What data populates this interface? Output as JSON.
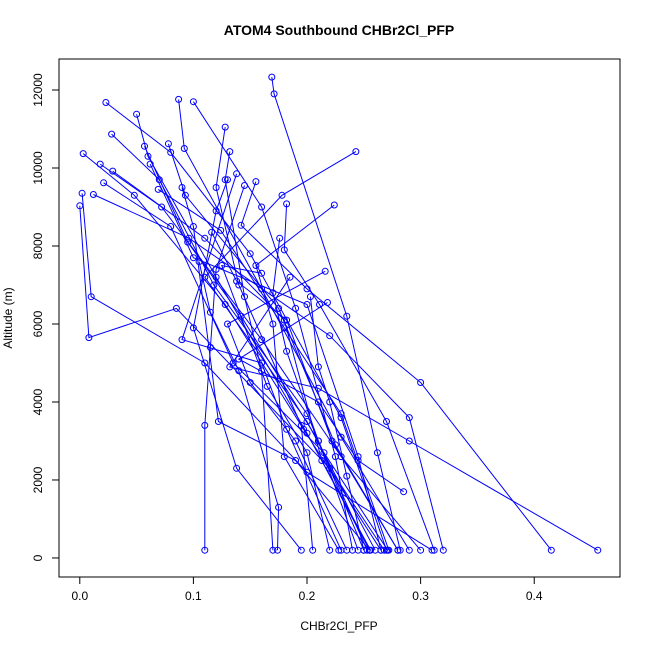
{
  "chart_data": {
    "type": "scatter",
    "title": "ATOM4 Southbound CHBr2Cl_PFP",
    "xlabel": "CHBr2Cl_PFP",
    "ylabel": "Altitude (m)",
    "xlim": [
      -0.0183,
      0.4755
    ],
    "ylim": [
      -488,
      12795
    ],
    "x_ticks": [
      "0.0",
      "0.1",
      "0.2",
      "0.3",
      "0.4"
    ],
    "x_tick_values": [
      0,
      0.1,
      0.2,
      0.3,
      0.4
    ],
    "y_ticks": [
      "0",
      "2000",
      "4000",
      "6000",
      "8000",
      "10000",
      "12000"
    ],
    "y_tick_values": [
      0,
      2000,
      4000,
      6000,
      8000,
      10000,
      12000
    ],
    "grid": false,
    "legend": "none",
    "color": "#0000ff",
    "series": [
      {
        "x": [
          0.169,
          0.171,
          0.235,
          0.262,
          0.282
        ],
        "y": [
          12330,
          11900,
          6200,
          2700,
          200
        ]
      },
      {
        "x": [
          0.023,
          0.08,
          0.15,
          0.23,
          0.27
        ],
        "y": [
          11680,
          10400,
          7800,
          3600,
          200
        ]
      },
      {
        "x": [
          0.05,
          0.06,
          0.12,
          0.2,
          0.255
        ],
        "y": [
          11380,
          10300,
          7200,
          3200,
          200
        ]
      },
      {
        "x": [
          0.087,
          0.092,
          0.16,
          0.23,
          0.29
        ],
        "y": [
          11760,
          10500,
          6900,
          3100,
          200
        ]
      },
      {
        "x": [
          0.1,
          0.16,
          0.19,
          0.225,
          0.24
        ],
        "y": [
          11700,
          9000,
          6400,
          2600,
          200
        ]
      },
      {
        "x": [
          0.128,
          0.12,
          0.14,
          0.195,
          0.205
        ],
        "y": [
          11050,
          9500,
          7000,
          3400,
          200
        ]
      },
      {
        "x": [
          0.028,
          0.07,
          0.118,
          0.2,
          0.25
        ],
        "y": [
          10870,
          9700,
          7000,
          3700,
          200
        ]
      },
      {
        "x": [
          0.003,
          0.048,
          0.128,
          0.197,
          0.265
        ],
        "y": [
          10370,
          9300,
          6500,
          3300,
          200
        ]
      },
      {
        "x": [
          0.243,
          0.178,
          0.11,
          0.2,
          0.26
        ],
        "y": [
          10420,
          9300,
          7200,
          3500,
          200
        ]
      },
      {
        "x": [
          0.132,
          0.128,
          0.145,
          0.16,
          0.17
        ],
        "y": [
          10420,
          9700,
          6700,
          4800,
          200
        ]
      },
      {
        "x": [
          0.057,
          0.095,
          0.142,
          0.21,
          0.253
        ],
        "y": [
          10560,
          8100,
          6200,
          3000,
          200
        ]
      },
      {
        "x": [
          0.078,
          0.093,
          0.175,
          0.225,
          0.28
        ],
        "y": [
          10620,
          9300,
          6400,
          2900,
          200
        ]
      },
      {
        "x": [
          0.018,
          0.072,
          0.16,
          0.23,
          0.3
        ],
        "y": [
          10100,
          9000,
          5600,
          2600,
          200
        ]
      },
      {
        "x": [
          0.002,
          0.01,
          0.11,
          0.2,
          0.31
        ],
        "y": [
          9350,
          6700,
          5000,
          2200,
          200
        ]
      },
      {
        "x": [
          0.0,
          0.008,
          0.085,
          0.22,
          0.268
        ],
        "y": [
          9030,
          5650,
          6400,
          2300,
          200
        ]
      },
      {
        "x": [
          0.029,
          0.11,
          0.18,
          0.213,
          0.256
        ],
        "y": [
          9920,
          8200,
          6100,
          2500,
          200
        ]
      },
      {
        "x": [
          0.021,
          0.08,
          0.135,
          0.215,
          0.271
        ],
        "y": [
          9620,
          8500,
          5000,
          2700,
          200
        ]
      },
      {
        "x": [
          0.012,
          0.096,
          0.22,
          0.29,
          0.32
        ],
        "y": [
          9320,
          8200,
          5700,
          3600,
          200
        ]
      },
      {
        "x": [
          0.138,
          0.09,
          0.16,
          0.182,
          0.23
        ],
        "y": [
          9850,
          5600,
          5000,
          3300,
          200
        ]
      },
      {
        "x": [
          0.069,
          0.124,
          0.18,
          0.23,
          0.272
        ],
        "y": [
          9450,
          8400,
          5900,
          3700,
          200
        ]
      },
      {
        "x": [
          0.155,
          0.142,
          0.2,
          0.3,
          0.415
        ],
        "y": [
          9650,
          8530,
          6900,
          4500,
          200
        ]
      },
      {
        "x": [
          0.182,
          0.18,
          0.211,
          0.27,
          0.312
        ],
        "y": [
          9080,
          7900,
          6500,
          3500,
          200
        ]
      },
      {
        "x": [
          0.224,
          0.155,
          0.17,
          0.18,
          0.228
        ],
        "y": [
          9050,
          7500,
          6000,
          2600,
          200
        ]
      },
      {
        "x": [
          0.185,
          0.132,
          0.21,
          0.29,
          0.456
        ],
        "y": [
          7200,
          4900,
          4350,
          3000,
          200
        ]
      },
      {
        "x": [
          0.145,
          0.12,
          0.115,
          0.11,
          0.11
        ],
        "y": [
          9550,
          7400,
          5400,
          3400,
          200
        ]
      },
      {
        "x": [
          0.16,
          0.125,
          0.165,
          0.2,
          0.22
        ],
        "y": [
          7300,
          7500,
          4400,
          2700,
          200
        ]
      },
      {
        "x": [
          0.176,
          0.17,
          0.182,
          0.21,
          0.245
        ],
        "y": [
          8200,
          6800,
          5300,
          3000,
          200
        ]
      },
      {
        "x": [
          0.216,
          0.13,
          0.15,
          0.19,
          0.235
        ],
        "y": [
          7350,
          6000,
          4500,
          3000,
          200
        ]
      },
      {
        "x": [
          0.218,
          0.14,
          0.21,
          0.245,
          0.285
        ],
        "y": [
          6550,
          5100,
          4000,
          2500,
          1700
        ]
      },
      {
        "x": [
          0.105,
          0.115,
          0.14,
          0.175,
          0.174
        ],
        "y": [
          7600,
          6300,
          4800,
          1300,
          200
        ]
      },
      {
        "x": [
          0.13,
          0.12,
          0.1,
          0.138,
          0.195
        ],
        "y": [
          9700,
          8900,
          5900,
          2300,
          200
        ]
      },
      {
        "x": [
          0.203,
          0.21,
          0.22,
          0.235,
          0.25
        ],
        "y": [
          6700,
          4900,
          4000,
          2100,
          200
        ]
      },
      {
        "x": [
          0.09,
          0.1,
          0.122,
          0.19,
          0.255
        ],
        "y": [
          9500,
          8500,
          3500,
          2500,
          200
        ]
      },
      {
        "x": [
          0.062,
          0.1,
          0.2,
          0.245,
          0.265
        ],
        "y": [
          10100,
          7700,
          6500,
          2600,
          200
        ]
      },
      {
        "x": [
          0.116,
          0.138,
          0.182,
          0.222,
          0.28
        ],
        "y": [
          8350,
          7100,
          6100,
          3000,
          200
        ]
      }
    ]
  }
}
